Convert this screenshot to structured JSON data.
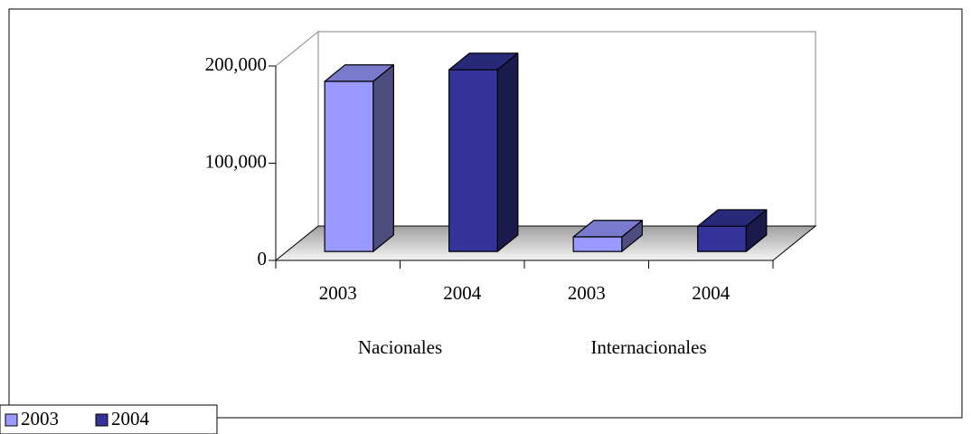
{
  "chart_data": {
    "type": "bar3d",
    "categories": [
      "2003",
      "2004",
      "2003",
      "2004"
    ],
    "groups": [
      {
        "name": "Nacionales",
        "span": 2
      },
      {
        "name": "Internacionales",
        "span": 2
      }
    ],
    "series": [
      {
        "name": "2003",
        "color": "#9999ff",
        "values": [
          175000,
          null,
          15000,
          null
        ]
      },
      {
        "name": "2004",
        "color": "#333399",
        "values": [
          null,
          187000,
          null,
          26000
        ]
      }
    ],
    "ylim": [
      0,
      200000
    ],
    "yticks": [
      0,
      {
        "value": 100000,
        "label": "100,000"
      },
      {
        "value": 200000,
        "label": "200,000"
      }
    ],
    "grid": false,
    "legend": "bottom-left"
  }
}
